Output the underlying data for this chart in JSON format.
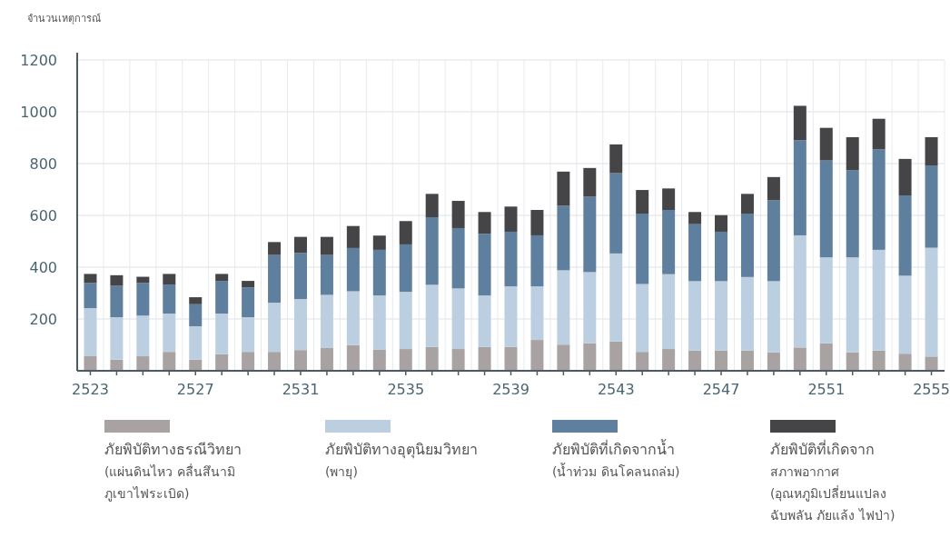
{
  "chart_data": {
    "type": "bar",
    "stacked": true,
    "ylabel": "จำนวนเหตุการณ์",
    "categories": [
      "2523",
      null,
      null,
      null,
      "2527",
      null,
      null,
      null,
      "2531",
      null,
      null,
      null,
      "2535",
      null,
      null,
      null,
      "2539",
      null,
      null,
      null,
      "2543",
      null,
      null,
      null,
      "2547",
      null,
      null,
      null,
      "2551",
      null,
      null,
      null,
      "2555"
    ],
    "ylim": [
      0,
      1200
    ],
    "yticks": [
      {
        "value": 0,
        "label": null
      },
      200,
      400,
      600,
      800,
      1000,
      1200
    ],
    "grid": true,
    "legend": "bottom",
    "series": [
      {
        "name": "ภัยพิบัติทางธรณีวิทยา\n(แผ่นดินไหว คลื่นสึนามิ\nภูเขาไฟระเบิด)",
        "color": "#a8a2a2",
        "values": [
          58,
          43,
          56,
          73,
          43,
          64,
          73,
          73,
          80,
          88,
          99,
          81,
          84,
          92,
          84,
          92,
          92,
          119,
          101,
          106,
          113,
          73,
          84,
          78,
          78,
          78,
          71,
          90,
          106,
          71,
          78,
          66,
          55
        ]
      },
      {
        "name": "ภัยพิบัติทางอุตุนิยมวิทยา\n(พายุ)",
        "color": "#bccfe0",
        "values": [
          184,
          164,
          157,
          148,
          129,
          157,
          134,
          190,
          197,
          205,
          208,
          210,
          221,
          240,
          234,
          199,
          234,
          207,
          287,
          275,
          340,
          262,
          289,
          268,
          268,
          284,
          275,
          433,
          332,
          367,
          389,
          301,
          420
        ]
      },
      {
        "name": "ภัยพิบัติที่เกิดจากน้ำ\n(น้ำท่วม ดินโคลนถล่ม)",
        "color": "#5f7f9f",
        "values": [
          97,
          121,
          126,
          112,
          85,
          126,
          115,
          184,
          178,
          154,
          167,
          176,
          183,
          261,
          233,
          238,
          211,
          197,
          249,
          291,
          310,
          272,
          248,
          220,
          191,
          245,
          312,
          367,
          374,
          337,
          388,
          310,
          316
        ]
      },
      {
        "name": "ภัยพิบัติที่เกิดจาก\nสภาพอากาศ\n(อุณหภูมิเปลี่ยนแปลง\nฉับพลัน ภัยแล้ง ไฟป่า)",
        "color": "#454548",
        "values": [
          35,
          41,
          24,
          41,
          27,
          27,
          25,
          50,
          62,
          70,
          85,
          55,
          90,
          90,
          105,
          84,
          97,
          98,
          132,
          111,
          111,
          91,
          83,
          47,
          64,
          76,
          90,
          133,
          126,
          127,
          118,
          141,
          111
        ]
      }
    ]
  }
}
